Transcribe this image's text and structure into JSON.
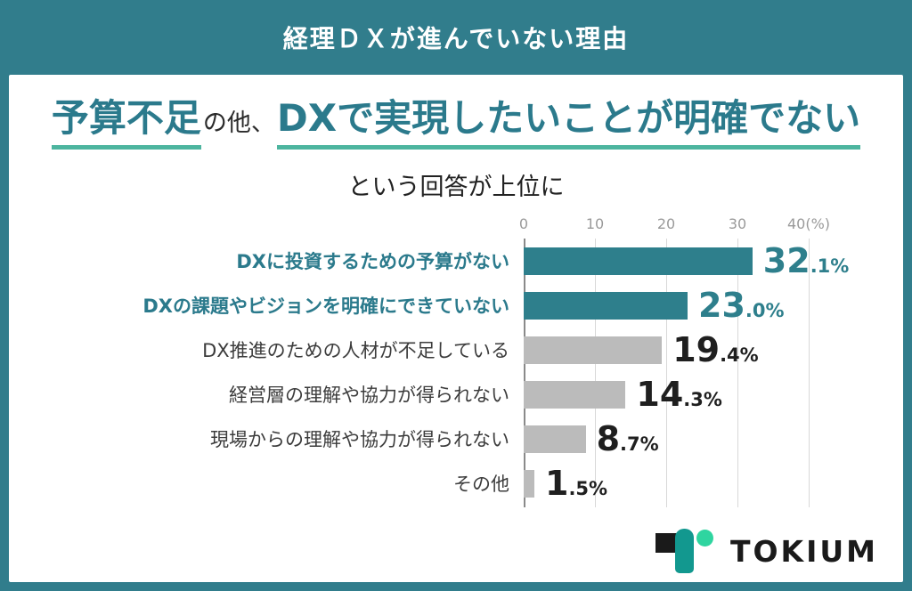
{
  "banner": {
    "title": "経理ＤＸが進んでいない理由"
  },
  "headline": {
    "part1": "予算不足",
    "part2": "の他、",
    "part3": "DXで実現したいことが明確でない",
    "subtitle": "という回答が上位に"
  },
  "chart_data": {
    "type": "bar",
    "orientation": "horizontal",
    "title": "経理ＤＸが進んでいない理由",
    "categories": [
      "DXに投資するための予算がない",
      "DXの課題やビジョンを明確にできていない",
      "DX推進のための人材が不足している",
      "経営層の理解や協力が得られない",
      "現場からの理解や協力が得られない",
      "その他"
    ],
    "values": [
      32.1,
      23.0,
      19.4,
      14.3,
      8.7,
      1.5
    ],
    "value_labels": [
      "32.1%",
      "23.0%",
      "19.4%",
      "14.3%",
      "8.7%",
      "1.5%"
    ],
    "highlighted": [
      true,
      true,
      false,
      false,
      false,
      false
    ],
    "xlim": [
      0,
      40
    ],
    "ticks": [
      0,
      10,
      20,
      30,
      40
    ],
    "tick_suffix": "(%)",
    "grid": true,
    "legend": "none",
    "colors": {
      "highlight_bar": "#2E7F8C",
      "default_bar": "#BBBBBB",
      "highlight_text": "#2E7F8C",
      "default_text": "#1F1F1F",
      "tick_text": "#9A9A9A"
    }
  },
  "logo": {
    "text": "TOKIUM"
  },
  "theme": {
    "background_teal": "#317D8C",
    "card_white": "#FFFFFF",
    "headline_teal": "#2B7A8C",
    "underline_green": "#4DB59F"
  }
}
